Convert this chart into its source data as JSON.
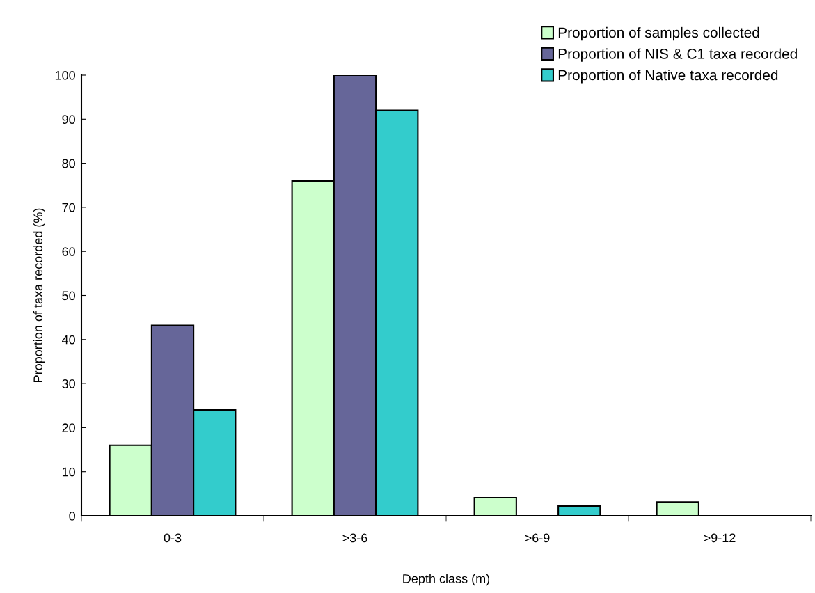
{
  "chart_data": {
    "type": "bar",
    "xlabel": "Depth class (m)",
    "ylabel": "Proportion of taxa recorded (%)",
    "categories": [
      "0-3",
      ">3-6",
      ">6-9",
      ">9-12"
    ],
    "series": [
      {
        "name": "Proportion of samples collected",
        "color": "#ccffcc",
        "values": [
          16,
          76,
          4.1,
          3.1
        ]
      },
      {
        "name": "Proportion of NIS & C1 taxa recorded",
        "color": "#666699",
        "values": [
          43.2,
          100,
          null,
          null
        ]
      },
      {
        "name": "Proportion of Native taxa recorded",
        "color": "#33cccc",
        "values": [
          24,
          92,
          2.2,
          null
        ]
      }
    ],
    "ylim": [
      0,
      100
    ],
    "yticks": [
      0,
      10,
      20,
      30,
      40,
      50,
      60,
      70,
      80,
      90,
      100
    ],
    "grid": false,
    "legend": "top right"
  }
}
